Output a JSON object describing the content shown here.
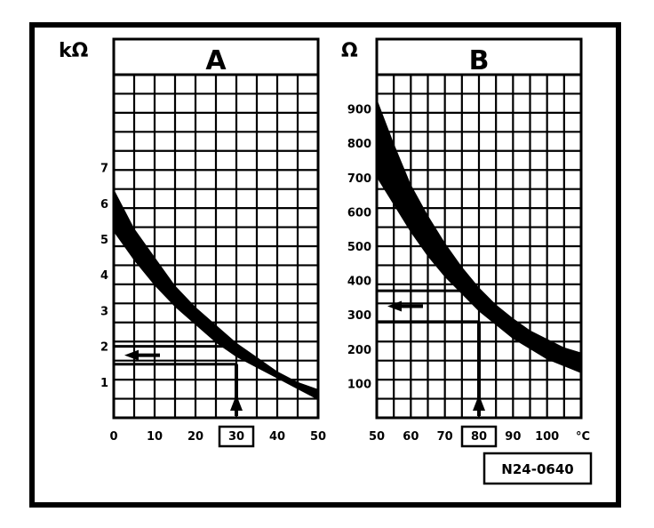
{
  "figure_code": "N24-0640",
  "colors": {
    "ink": "#000000",
    "paper": "#ffffff"
  },
  "chart_data": [
    {
      "type": "area",
      "panel_label": "A",
      "ylabel": "kΩ",
      "xlabel": "",
      "x_ticks": [
        "0",
        "10",
        "20",
        "30",
        "40",
        "50"
      ],
      "y_ticks": [
        "1",
        "2",
        "3",
        "4",
        "5",
        "6",
        "7"
      ],
      "xlim": [
        0,
        50
      ],
      "ylim": [
        0,
        9.6
      ],
      "grid": true,
      "highlighted_x": "30",
      "band": {
        "x": [
          0,
          5,
          10,
          15,
          20,
          25,
          30,
          35,
          40,
          45,
          50
        ],
        "upper": [
          6.4,
          5.3,
          4.5,
          3.7,
          3.1,
          2.6,
          2.1,
          1.7,
          1.3,
          1.0,
          0.8
        ],
        "lower": [
          5.2,
          4.4,
          3.7,
          3.1,
          2.6,
          2.1,
          1.7,
          1.4,
          1.1,
          0.8,
          0.5
        ]
      },
      "reading": {
        "x": 30,
        "y_range": [
          1.5,
          2.0
        ]
      }
    },
    {
      "type": "area",
      "panel_label": "B",
      "ylabel": "Ω",
      "xlabel": "°C",
      "x_ticks": [
        "50",
        "60",
        "70",
        "80",
        "90",
        "100"
      ],
      "y_ticks": [
        "100",
        "200",
        "300",
        "400",
        "500",
        "600",
        "700",
        "800",
        "900"
      ],
      "xlim": [
        50,
        110
      ],
      "ylim": [
        0,
        1000
      ],
      "grid": true,
      "highlighted_x": "80",
      "band": {
        "x": [
          50,
          55,
          60,
          65,
          70,
          75,
          80,
          85,
          90,
          95,
          100,
          105,
          110
        ],
        "upper": [
          930,
          800,
          680,
          590,
          510,
          440,
          380,
          330,
          290,
          255,
          230,
          205,
          190
        ],
        "lower": [
          700,
          620,
          540,
          470,
          410,
          360,
          310,
          270,
          230,
          200,
          170,
          150,
          130
        ]
      },
      "reading": {
        "x": 80,
        "y_range": [
          280,
          370
        ]
      }
    }
  ]
}
